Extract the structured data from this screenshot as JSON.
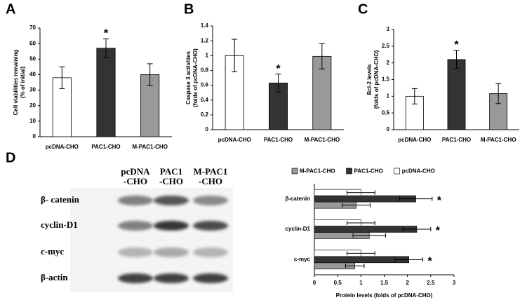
{
  "chart_data": [
    {
      "type": "bar",
      "panel": "A",
      "ylabel": [
        "Cell viabilities remaining",
        "(% of initial)"
      ],
      "categories": [
        "pcDNA-CHO",
        "PAC1-CHO",
        "M-PAC1-CHO"
      ],
      "values": [
        38,
        57,
        40
      ],
      "errors": [
        7,
        6,
        7
      ],
      "colors": [
        "#ffffff",
        "#333333",
        "#999999"
      ],
      "annotations": [
        null,
        "*",
        null
      ],
      "ylim": [
        0,
        70
      ],
      "yticks": [
        0,
        10,
        20,
        30,
        40,
        50,
        60,
        70
      ]
    },
    {
      "type": "bar",
      "panel": "B",
      "ylabel": [
        "Caspase 3 activities",
        "(folds of pcDNA-CHO)"
      ],
      "categories": [
        "pcDNA-CHO",
        "PAC1-CHO",
        "M-PAC1-CHO"
      ],
      "values": [
        1.0,
        0.63,
        0.99
      ],
      "errors": [
        0.22,
        0.12,
        0.17
      ],
      "colors": [
        "#ffffff",
        "#333333",
        "#999999"
      ],
      "annotations": [
        null,
        "*",
        null
      ],
      "ylim": [
        0,
        1.4
      ],
      "yticks": [
        0,
        0.2,
        0.4,
        0.6,
        0.8,
        1,
        1.2,
        1.4
      ]
    },
    {
      "type": "bar",
      "panel": "C",
      "ylabel": [
        "Bcl-2 levels",
        "(folds of pcDNA-CHO)"
      ],
      "categories": [
        "pcDNA-CHO",
        "PAC1-CHO",
        "M-PAC1-CHO"
      ],
      "values": [
        1.0,
        2.1,
        1.08
      ],
      "errors": [
        0.23,
        0.27,
        0.3
      ],
      "colors": [
        "#ffffff",
        "#333333",
        "#999999"
      ],
      "annotations": [
        null,
        "*",
        null
      ],
      "ylim": [
        0,
        3
      ],
      "yticks": [
        0,
        0.5,
        1,
        1.5,
        2,
        2.5,
        3
      ]
    },
    {
      "type": "hbar",
      "xlabel": "Protein levels (folds of pcDNA-CHO)",
      "categories": [
        "β-catenin",
        "cyclin-D1",
        "c-myc"
      ],
      "annotations": [
        "*",
        "*",
        "*"
      ],
      "series": [
        {
          "name": "M-PAC1-CHO",
          "color": "#999999",
          "values": [
            0.9,
            1.18,
            0.87
          ],
          "errors": [
            0.3,
            0.35,
            0.2
          ]
        },
        {
          "name": "PAC1-CHO",
          "color": "#333333",
          "values": [
            2.18,
            2.2,
            2.03
          ],
          "errors": [
            0.35,
            0.3,
            0.3
          ]
        },
        {
          "name": "pcDNA-CHO",
          "color": "#ffffff",
          "values": [
            1,
            1,
            1
          ],
          "errors": [
            0.3,
            0.3,
            0.3
          ]
        }
      ],
      "xlim": [
        0,
        3
      ],
      "xticks": [
        0,
        0.5,
        1,
        1.5,
        2,
        2.5,
        3
      ]
    }
  ],
  "blot": {
    "panel": "D",
    "columns": [
      [
        "pcDNA",
        "-CHO"
      ],
      [
        "PAC1",
        "-CHO"
      ],
      [
        "M-PAC1",
        "-CHO"
      ]
    ],
    "rows": [
      "β- catenin",
      "cyclin-D1",
      "c-myc",
      "β-actin"
    ]
  }
}
